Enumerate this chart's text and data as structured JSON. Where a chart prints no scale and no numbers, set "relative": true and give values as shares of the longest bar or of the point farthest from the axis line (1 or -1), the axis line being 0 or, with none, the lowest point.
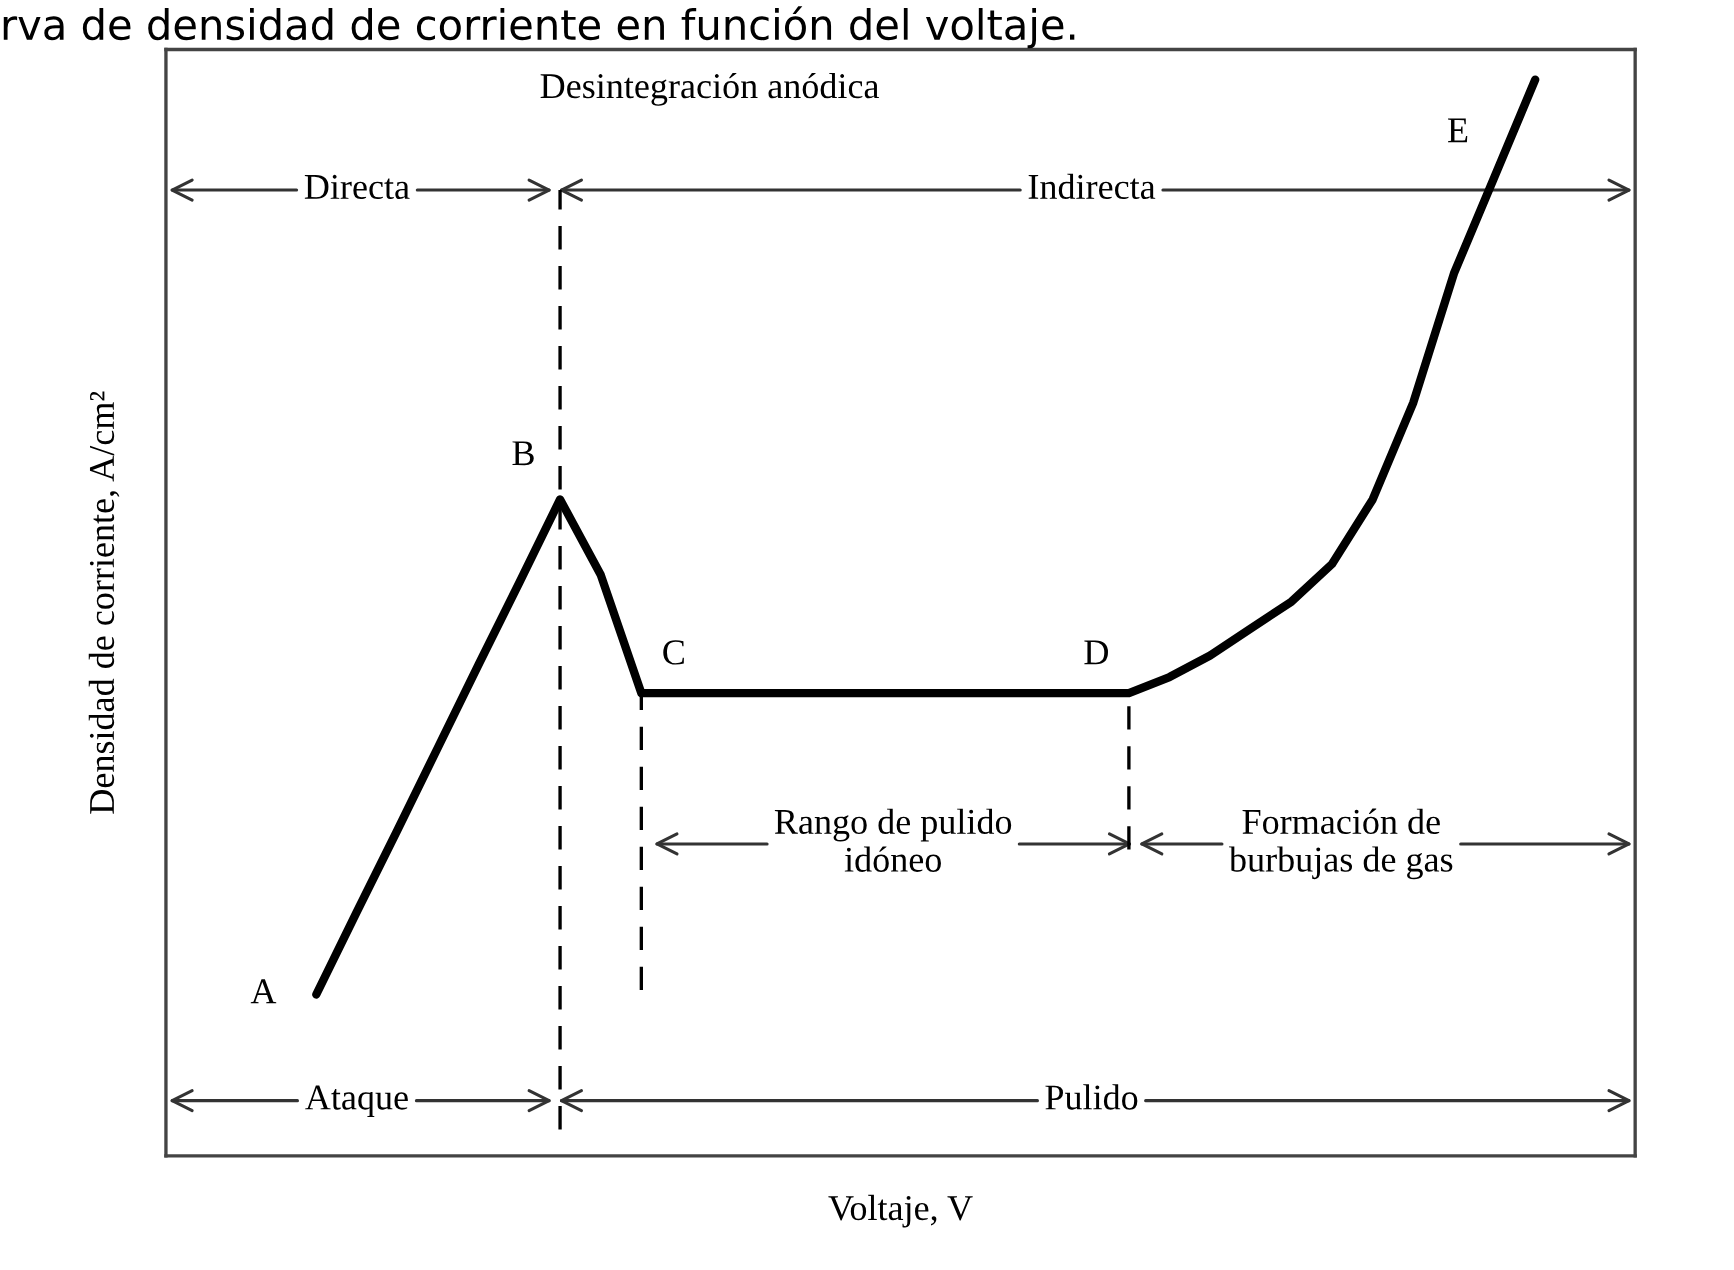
{
  "chart_data": {
    "type": "line",
    "relative": true,
    "tick_labels": false,
    "grid": false,
    "legend": false,
    "marker": "none",
    "line_style": "solid",
    "title": "rva de densidad de corriente en función del voltaje.",
    "xlabel": "Voltaje, V",
    "ylabel": "Densidad de corriente, A/cm²",
    "categories": [
      null,
      null,
      null,
      null,
      null,
      null,
      null,
      null,
      null,
      null,
      null,
      null,
      null,
      null,
      null,
      null,
      null,
      null,
      null,
      null,
      null,
      null,
      null,
      null,
      null,
      null,
      null,
      null,
      null,
      null,
      null
    ],
    "series": [
      {
        "color": "#000000",
        "values": [
          0.15,
          0.227,
          0.303,
          0.38,
          0.457,
          0.533,
          0.61,
          0.54,
          0.43,
          0.43,
          0.43,
          0.43,
          0.43,
          0.43,
          0.43,
          0.43,
          0.43,
          0.43,
          0.43,
          0.43,
          0.43,
          0.445,
          0.465,
          0.49,
          0.515,
          0.55,
          0.61,
          0.7,
          0.82,
          0.91,
          1.0
        ]
      }
    ],
    "annotations": [
      "A",
      "B",
      "C",
      "D",
      "E",
      "Desintegración anódica",
      "Directa",
      "Indirecta",
      "Rango de pulido\nidóneo",
      "Formación de\nburbujas de gas",
      "Ataque",
      "Pulido"
    ]
  }
}
